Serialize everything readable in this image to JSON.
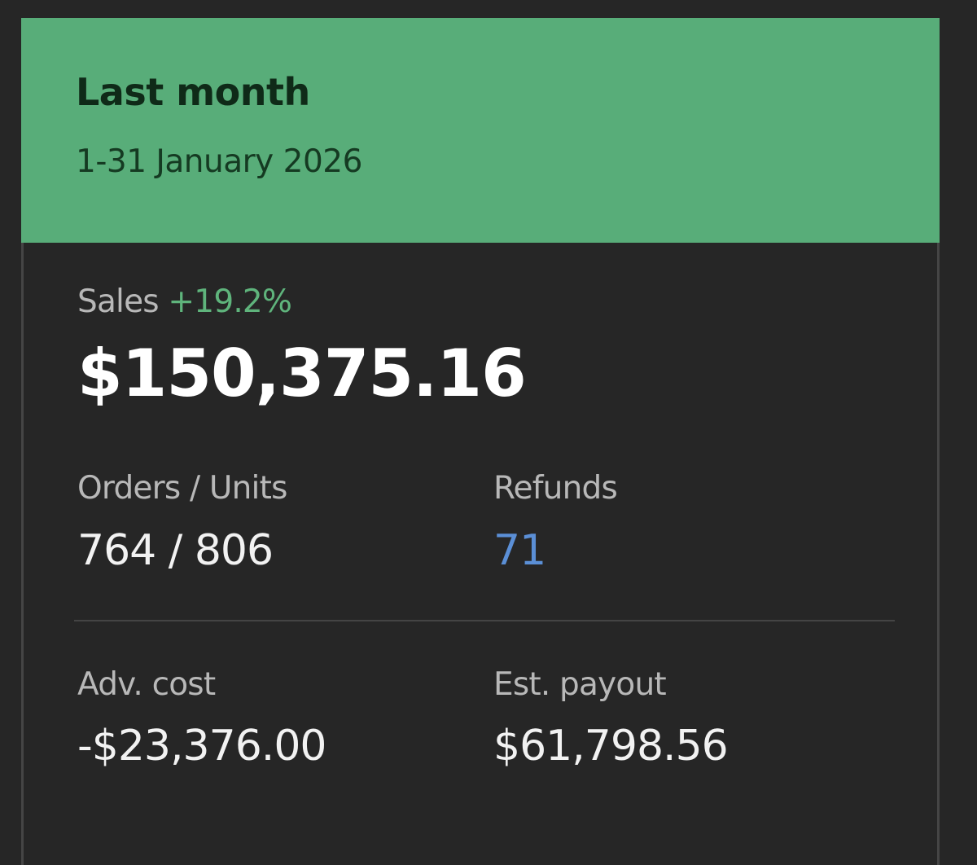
{
  "card": {
    "title": "Last month",
    "date_range": "1-31 January 2026",
    "sales": {
      "label": "Sales",
      "change": "+19.2%",
      "value": "$150,375.16"
    },
    "orders_units": {
      "label": "Orders / Units",
      "value": "764 / 806"
    },
    "refunds": {
      "label": "Refunds",
      "value": "71"
    },
    "adv_cost": {
      "label": "Adv. cost",
      "value": "-$23,376.00"
    },
    "est_payout": {
      "label": "Est. payout",
      "value": "$61,798.56"
    }
  },
  "colors": {
    "header": "#58ad79",
    "positive": "#5fb47c",
    "link": "#5b8fd6",
    "background": "#262626"
  }
}
